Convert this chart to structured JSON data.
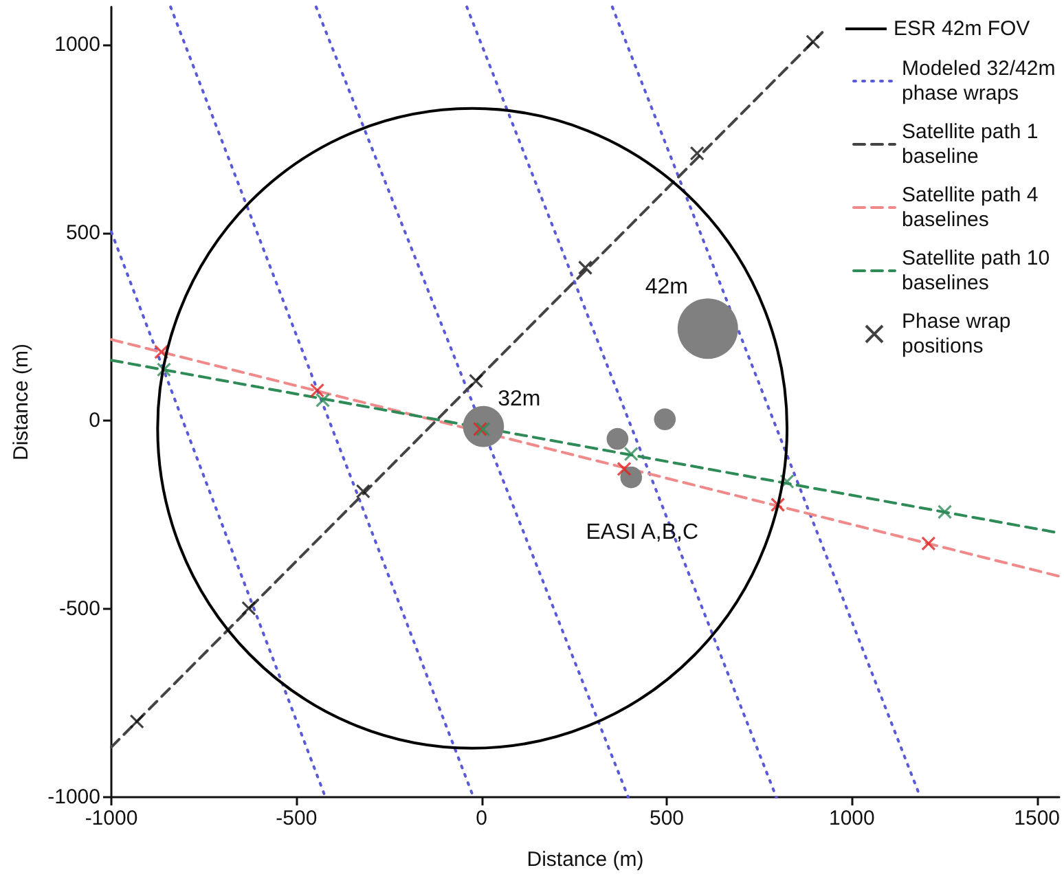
{
  "chart_data": {
    "type": "line",
    "xlabel": "Distance (m)",
    "ylabel": "Distance (m)",
    "xlim": [
      -1000,
      1560
    ],
    "ylim": [
      -1000,
      1100
    ],
    "xticks": [
      -1000,
      -500,
      0,
      500,
      1000,
      1500
    ],
    "yticks": [
      -1000,
      -500,
      0,
      500,
      1000
    ],
    "grid": false,
    "legend": "top right",
    "annotations": [
      "ESR 42m FOV",
      {
        "text": "32m",
        "x": 5,
        "y": -15
      },
      {
        "text": "42m",
        "x": 611,
        "y": 245
      },
      {
        "text": "EASI A,B,C",
        "x": 404,
        "y": -150
      }
    ],
    "series": [
      {
        "name": "Modeled 32/42m phase wraps",
        "color": "#5a5ad8",
        "line_style": "dotted",
        "marker": "none",
        "x": [
          -1000,
          -422
        ],
        "values": [
          502,
          -1000
        ]
      },
      {
        "color": "#5a5ad8",
        "line_style": "dotted",
        "marker": "none",
        "x": [
          -840,
          -22
        ],
        "values": [
          1100,
          -1000
        ]
      },
      {
        "color": "#5a5ad8",
        "line_style": "dotted",
        "marker": "none",
        "x": [
          -447,
          396
        ],
        "values": [
          1100,
          -1000
        ]
      },
      {
        "color": "#5a5ad8",
        "line_style": "dotted",
        "marker": "none",
        "x": [
          -40,
          796
        ],
        "values": [
          1100,
          -1000
        ]
      },
      {
        "color": "#5a5ad8",
        "line_style": "dotted",
        "marker": "none",
        "x": [
          353,
          1185
        ],
        "values": [
          1100,
          -1000
        ]
      },
      {
        "name": "Satellite path 1 baseline",
        "color": "#444444",
        "line_style": "dashed",
        "marker": "none",
        "x": [
          -1000,
          920
        ],
        "values": [
          -867,
          1032
        ]
      },
      {
        "name": "Satellite path 4 baselines",
        "color": "#f08a8a",
        "line_style": "dashed",
        "marker": "none",
        "x": [
          -1000,
          1560
        ],
        "values": [
          216,
          -413
        ]
      },
      {
        "name": "Satellite path 10 baselines",
        "color": "#2e8b57",
        "line_style": "dashed",
        "marker": "none",
        "x": [
          -1000,
          1560
        ],
        "values": [
          161,
          -298
        ]
      },
      {
        "type": "bubble",
        "color": "#808080",
        "x": [
          5,
          611,
          367,
          495,
          404
        ],
        "values": [
          -15,
          245,
          -48,
          4,
          -150
        ],
        "sizes": [
          0.46,
          1,
          0.13,
          0.13,
          0.13
        ]
      },
      {
        "type": "scatter",
        "color": "#e02020",
        "marker": "cross",
        "x": [
          -865,
          -444,
          -4,
          385,
          800,
          1207
        ],
        "values": [
          183,
          81,
          -22,
          -128,
          -223,
          -326
        ]
      },
      {
        "name": "Phase wrap positions",
        "type": "scatter",
        "color": "#111111",
        "marker": "cross",
        "x": [
          -931,
          -629,
          -320,
          -15,
          280,
          582,
          895
        ],
        "values": [
          -799,
          -498,
          -187,
          106,
          407,
          711,
          1007
        ]
      },
      {
        "type": "scatter",
        "color": "#2e8b57",
        "marker": "cross",
        "x": [
          -858,
          -429,
          4,
          404,
          825,
          1251
        ],
        "values": [
          136,
          55,
          -22,
          -88,
          -161,
          -242
        ]
      }
    ]
  }
}
